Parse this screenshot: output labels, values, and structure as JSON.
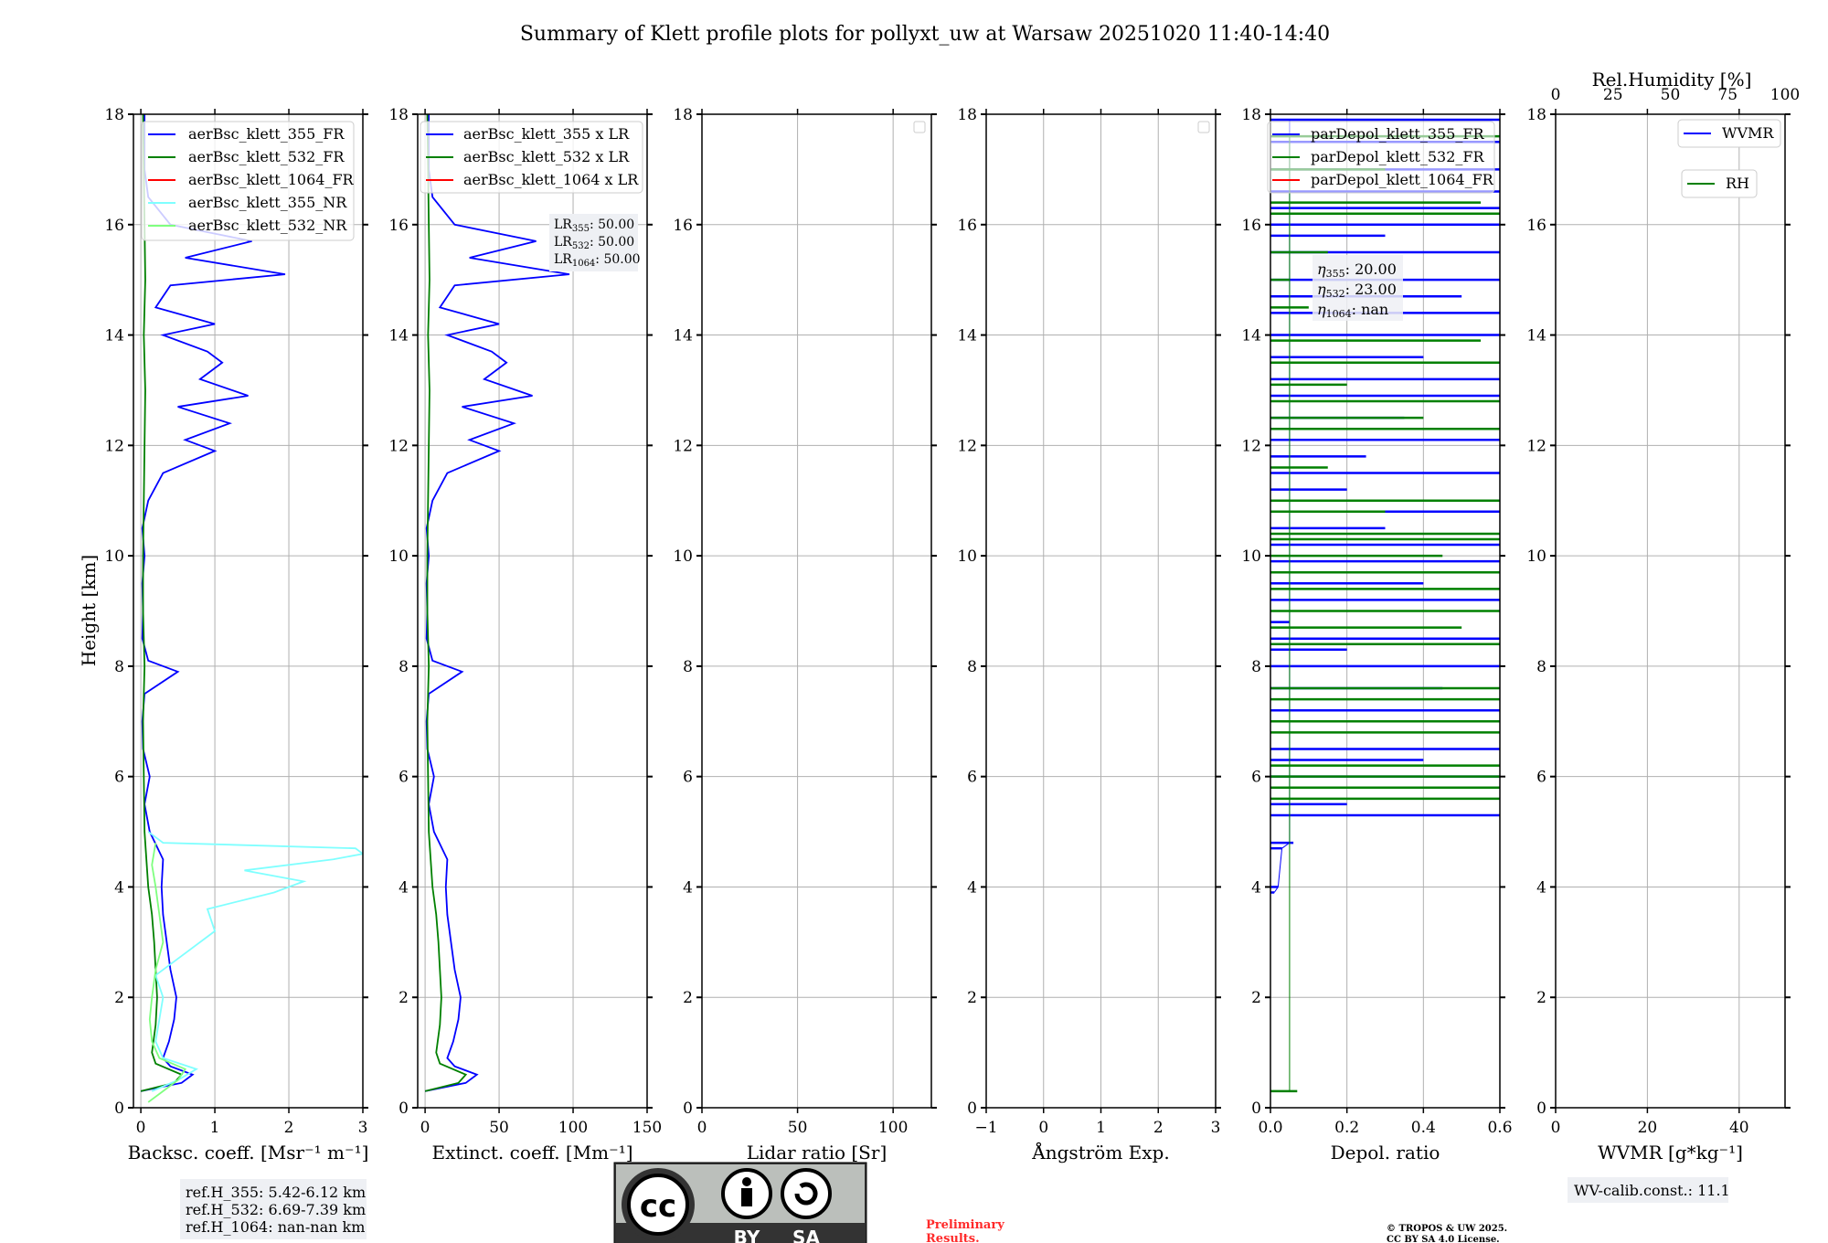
{
  "title": "Summary of Klett profile plots for pollyxt_uw at Warsaw 20251020 11:40-14:40",
  "ylabel": "Height [km]",
  "colors": {
    "b355": "#0000ff",
    "g532": "#008000",
    "r1064": "#ff0000",
    "c355nr": "#7fffff",
    "g532nr": "#7fff7f",
    "box": "#eef0f4"
  },
  "chart_data": [
    {
      "type": "line",
      "id": "backscatter",
      "xlabel": "Backsc. coeff. [Msr⁻¹ m⁻¹]",
      "xlim": [
        -0.1,
        3
      ],
      "xticks": [
        "0",
        "1",
        "2",
        "3"
      ],
      "xtick_values": [
        0,
        1,
        2,
        3
      ],
      "ylim": [
        0,
        18
      ],
      "yticks": [
        "0",
        "2",
        "4",
        "6",
        "8",
        "10",
        "12",
        "14",
        "16",
        "18"
      ],
      "legend": [
        "aerBsc_klett_355_FR",
        "aerBsc_klett_532_FR",
        "aerBsc_klett_1064_FR",
        "aerBsc_klett_355_NR",
        "aerBsc_klett_532_NR"
      ],
      "series": [
        {
          "name": "aerBsc_klett_355_FR",
          "color": "#0000ff",
          "h": [
            0.3,
            0.45,
            0.6,
            0.75,
            0.9,
            1.2,
            1.6,
            2.0,
            2.5,
            3.0,
            3.5,
            4.0,
            4.5,
            5.0,
            5.5,
            6.0,
            6.5,
            7.0,
            7.5,
            7.9,
            8.1,
            8.5,
            9.0,
            9.5,
            10.0,
            10.5,
            11.0,
            11.5,
            11.9,
            12.1,
            12.4,
            12.7,
            12.9,
            13.2,
            13.5,
            13.7,
            14.0,
            14.2,
            14.5,
            14.9,
            15.1,
            15.4,
            15.7,
            16.0,
            16.5,
            17.0,
            17.5,
            18.0
          ],
          "v": [
            0,
            0.55,
            0.7,
            0.4,
            0.3,
            0.38,
            0.45,
            0.48,
            0.4,
            0.35,
            0.3,
            0.28,
            0.3,
            0.12,
            0.05,
            0.12,
            0.03,
            0.02,
            0.05,
            0.5,
            0.1,
            0.02,
            0.03,
            0.02,
            0.05,
            0.02,
            0.1,
            0.3,
            1.0,
            0.6,
            1.2,
            0.5,
            1.45,
            0.8,
            1.1,
            0.9,
            0.3,
            1.0,
            0.2,
            0.4,
            1.95,
            0.6,
            1.5,
            0.4,
            0.1,
            0.05,
            0.05,
            0.05
          ]
        },
        {
          "name": "aerBsc_klett_532_FR",
          "color": "#008000",
          "h": [
            0.3,
            0.45,
            0.6,
            0.8,
            1.0,
            1.5,
            2.0,
            2.5,
            3.0,
            3.5,
            4.0,
            5.0,
            6.0,
            7.0,
            8.0,
            9.0,
            10.0,
            11.0,
            12.0,
            13.0,
            14.0,
            15.0,
            16.0,
            17.0,
            18.0
          ],
          "v": [
            0,
            0.45,
            0.55,
            0.2,
            0.15,
            0.2,
            0.22,
            0.2,
            0.18,
            0.15,
            0.1,
            0.05,
            0.04,
            0.03,
            0.05,
            0.03,
            0.03,
            0.04,
            0.05,
            0.06,
            0.04,
            0.06,
            0.05,
            0.04,
            0.03
          ]
        },
        {
          "name": "aerBsc_klett_355_NR",
          "color": "#7fffff",
          "h": [
            0.3,
            0.5,
            0.7,
            0.9,
            1.2,
            1.6,
            2.0,
            2.4,
            2.8,
            3.2,
            3.6,
            3.9,
            4.1,
            4.3,
            4.5,
            4.6,
            4.7,
            4.8,
            5.0
          ],
          "v": [
            0.15,
            0.5,
            0.75,
            0.3,
            0.2,
            0.25,
            0.3,
            0.2,
            0.6,
            1.0,
            0.9,
            1.8,
            2.2,
            1.4,
            2.6,
            3.0,
            2.9,
            0.3,
            0.1
          ]
        },
        {
          "name": "aerBsc_klett_532_NR",
          "color": "#7fff7f",
          "h": [
            0.1,
            0.3,
            0.5,
            0.7,
            0.9,
            1.2,
            1.6,
            2.0,
            2.5,
            3.0,
            3.5,
            4.0,
            4.4,
            4.8
          ],
          "v": [
            0.1,
            0.3,
            0.5,
            0.6,
            0.25,
            0.15,
            0.12,
            0.15,
            0.2,
            0.3,
            0.25,
            0.2,
            0.15,
            0.2
          ]
        }
      ],
      "ref_heights": [
        "ref.H_355: 5.42-6.12 km",
        "ref.H_532: 6.69-7.39 km",
        "ref.H_1064: nan-nan km"
      ]
    },
    {
      "type": "line",
      "id": "extinction",
      "xlabel": "Extinct. coeff. [Mm⁻¹]",
      "xlim": [
        -5,
        150
      ],
      "xticks": [
        "0",
        "50",
        "100",
        "150"
      ],
      "xtick_values": [
        0,
        50,
        100,
        150
      ],
      "ylim": [
        0,
        18
      ],
      "yticks": [
        "0",
        "2",
        "4",
        "6",
        "8",
        "10",
        "12",
        "14",
        "16",
        "18"
      ],
      "legend": [
        "aerBsc_klett_355 x LR",
        "aerBsc_klett_532 x LR",
        "aerBsc_klett_1064 x LR"
      ],
      "lidar_ratios": [
        {
          "label": "LR",
          "sub": "355",
          "value": ": 50.00"
        },
        {
          "label": "LR",
          "sub": "532",
          "value": ": 50.00"
        },
        {
          "label": "LR",
          "sub": "1064",
          "value": ": 50.00"
        }
      ],
      "series_scale_of_backscatter": 50
    },
    {
      "type": "line",
      "id": "lidar_ratio",
      "xlabel": "Lidar ratio [Sr]",
      "xlim": [
        0,
        120
      ],
      "xticks": [
        "0",
        "50",
        "100"
      ],
      "xtick_values": [
        0,
        50,
        100
      ],
      "ylim": [
        0,
        18
      ],
      "yticks": [
        "0",
        "2",
        "4",
        "6",
        "8",
        "10",
        "12",
        "14",
        "16",
        "18"
      ],
      "series": []
    },
    {
      "type": "line",
      "id": "angstrom",
      "xlabel": "Ångström Exp.",
      "xlim": [
        -1,
        3
      ],
      "xticks": [
        "−1",
        "0",
        "1",
        "2",
        "3"
      ],
      "xtick_values": [
        -1,
        0,
        1,
        2,
        3
      ],
      "ylim": [
        0,
        18
      ],
      "yticks": [
        "0",
        "2",
        "4",
        "6",
        "8",
        "10",
        "12",
        "14",
        "16",
        "18"
      ],
      "series": []
    },
    {
      "type": "line",
      "id": "depol",
      "xlabel": "Depol. ratio",
      "xlim": [
        0,
        0.6
      ],
      "xticks": [
        "0.0",
        "0.2",
        "0.4",
        "0.6"
      ],
      "xtick_values": [
        0,
        0.2,
        0.4,
        0.6
      ],
      "ylim": [
        0,
        18
      ],
      "yticks": [
        "0",
        "2",
        "4",
        "6",
        "8",
        "10",
        "12",
        "14",
        "16",
        "18"
      ],
      "legend": [
        "parDepol_klett_355_FR",
        "parDepol_klett_532_FR",
        "parDepol_klett_1064_FR"
      ],
      "eta": [
        {
          "label": "η",
          "sub": "355",
          "value": ": 20.00"
        },
        {
          "label": "η",
          "sub": "532",
          "value": ": 23.00"
        },
        {
          "label": "η",
          "sub": "1064",
          "value": ": nan"
        }
      ],
      "series": [
        {
          "name": "parDepol_klett_355_FR",
          "color": "#0000ff",
          "h": [
            3.9,
            4.0,
            4.7,
            4.8,
            5.3,
            5.5,
            6.0,
            6.3,
            6.5,
            7.0,
            7.2,
            7.6,
            8.0,
            8.3,
            8.5,
            8.8,
            9.2,
            9.5,
            9.9,
            10.2,
            10.5,
            10.8,
            11.2,
            11.5,
            11.8,
            12.1,
            12.5,
            12.9,
            13.2,
            13.6,
            14.0,
            14.4,
            14.7,
            15.0,
            15.5,
            15.8,
            16.0,
            16.3,
            16.6,
            17.0,
            17.5,
            17.9
          ],
          "v": [
            0.01,
            0.02,
            0.03,
            0.06,
            0.6,
            0.2,
            0.6,
            0.4,
            0.6,
            0.3,
            0.6,
            0.45,
            0.6,
            0.2,
            0.6,
            0.05,
            0.6,
            0.4,
            0.6,
            0.6,
            0.3,
            0.6,
            0.2,
            0.6,
            0.25,
            0.6,
            0.35,
            0.6,
            0.6,
            0.4,
            0.6,
            0.6,
            0.5,
            0.6,
            0.6,
            0.3,
            0.6,
            0.6,
            0.6,
            0.6,
            0.6,
            0.6
          ]
        },
        {
          "name": "parDepol_klett_532_FR",
          "color": "#008000",
          "h": [
            0.3,
            5.6,
            5.8,
            6.0,
            6.2,
            6.8,
            7.0,
            7.4,
            7.6,
            8.4,
            8.7,
            9.0,
            9.4,
            9.7,
            10.0,
            10.3,
            10.4,
            10.8,
            11.0,
            11.6,
            12.3,
            12.5,
            12.8,
            13.1,
            13.5,
            13.9,
            14.5,
            15.0,
            15.5,
            16.2,
            16.4,
            17.0,
            17.6
          ],
          "v": [
            0.07,
            0.6,
            0.6,
            0.6,
            0.6,
            0.6,
            0.6,
            0.6,
            0.6,
            0.6,
            0.5,
            0.6,
            0.6,
            0.6,
            0.45,
            0.6,
            0.6,
            0.3,
            0.6,
            0.15,
            0.6,
            0.4,
            0.6,
            0.2,
            0.6,
            0.55,
            0.1,
            0.05,
            0.15,
            0.6,
            0.55,
            0.3,
            0.6
          ]
        }
      ]
    },
    {
      "type": "line",
      "id": "wvmr",
      "xlabel": "WVMR [g*kg⁻¹]",
      "xlim": [
        0,
        50
      ],
      "xticks": [
        "0",
        "20",
        "40"
      ],
      "xtick_values": [
        0,
        20,
        40
      ],
      "top_xlabel": "Rel.Humidity [%]",
      "top_xlim": [
        0,
        100
      ],
      "top_xticks": [
        "0",
        "25",
        "50",
        "75",
        "100"
      ],
      "top_xtick_values": [
        0,
        25,
        50,
        75,
        100
      ],
      "ylim": [
        0,
        18
      ],
      "yticks": [
        "0",
        "2",
        "4",
        "6",
        "8",
        "10",
        "12",
        "14",
        "16",
        "18"
      ],
      "legend": [
        "WVMR",
        "RH"
      ],
      "calib": "WV-calib.const.: 11.1",
      "series": []
    }
  ],
  "footer": {
    "cc_by": "BY",
    "cc_sa": "SA",
    "cc_mark": "cc",
    "preliminary_1": "Preliminary",
    "preliminary_2": "Results.",
    "copyright_1": "© TROPOS & UW 2025.",
    "copyright_2": "CC BY SA 4.0 License."
  }
}
